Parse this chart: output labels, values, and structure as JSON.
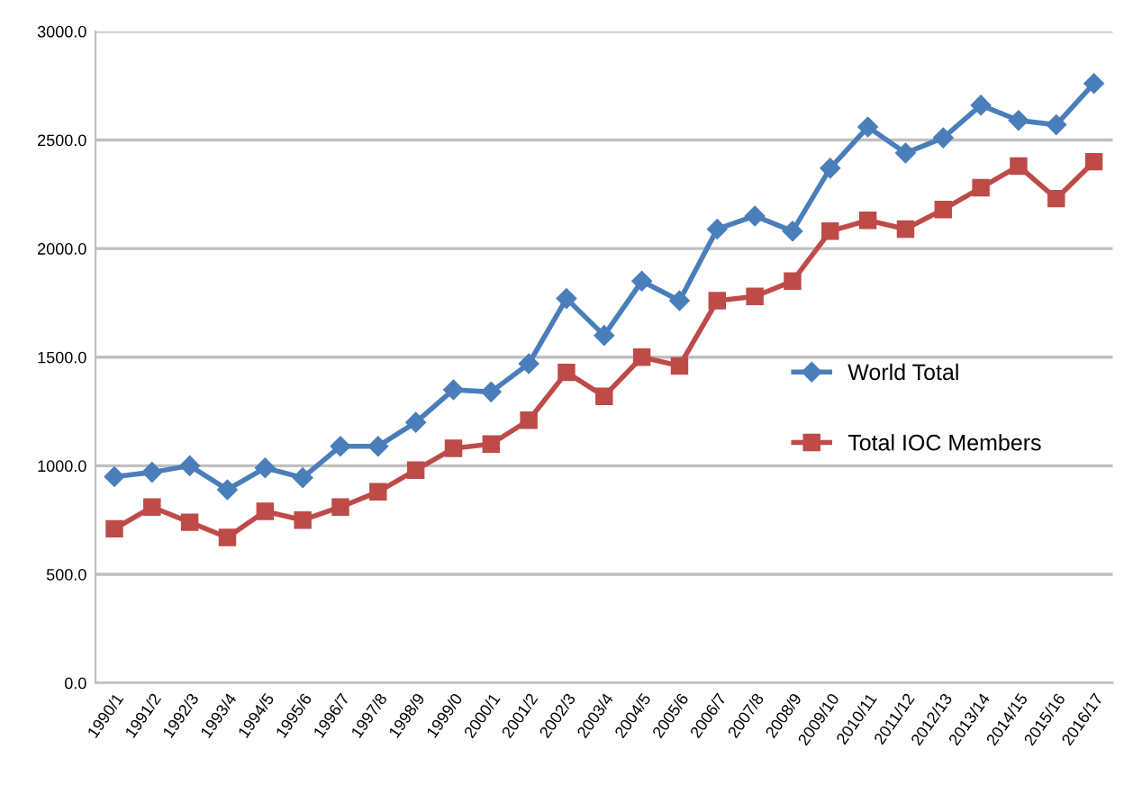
{
  "chart_data": {
    "type": "line",
    "categories": [
      "1990/1",
      "1991/2",
      "1992/3",
      "1993/4",
      "1994/5",
      "1995/6",
      "1996/7",
      "1997/8",
      "1998/9",
      "1999/0",
      "2000/1",
      "2001/2",
      "2002/3",
      "2003/4",
      "2004/5",
      "2005/6",
      "2006/7",
      "2007/8",
      "2008/9",
      "2009/10",
      "2010/11",
      "2011/12",
      "2012/13",
      "2013/14",
      "2014/15",
      "2015/16",
      "2016/17"
    ],
    "series": [
      {
        "name": "World Total",
        "color": "#4a7ebb",
        "marker": "diamond",
        "values": [
          950,
          970,
          1000,
          890,
          990,
          945,
          1090,
          1090,
          1200,
          1350,
          1340,
          1470,
          1770,
          1600,
          1850,
          1760,
          2090,
          2150,
          2080,
          2370,
          2560,
          2440,
          2510,
          2660,
          2590,
          2570,
          2760
        ]
      },
      {
        "name": "Total IOC Members",
        "color": "#be4b48",
        "marker": "square",
        "values": [
          710,
          810,
          740,
          670,
          790,
          750,
          810,
          880,
          980,
          1080,
          1100,
          1210,
          1430,
          1320,
          1500,
          1460,
          1760,
          1780,
          1850,
          2080,
          2130,
          2090,
          2180,
          2280,
          2380,
          2230,
          2400
        ]
      }
    ],
    "ylim": [
      0,
      3000
    ],
    "yticks": [
      {
        "value": 0,
        "label": "0.0"
      },
      {
        "value": 500,
        "label": "500.0"
      },
      {
        "value": 1000,
        "label": "1000.0"
      },
      {
        "value": 1500,
        "label": "1500.0"
      },
      {
        "value": 2000,
        "label": "2000.0"
      },
      {
        "value": 2500,
        "label": "2500.0"
      },
      {
        "value": 3000,
        "label": "3000.0"
      }
    ],
    "grid": "y",
    "legend": "right",
    "line_style": "solid"
  }
}
